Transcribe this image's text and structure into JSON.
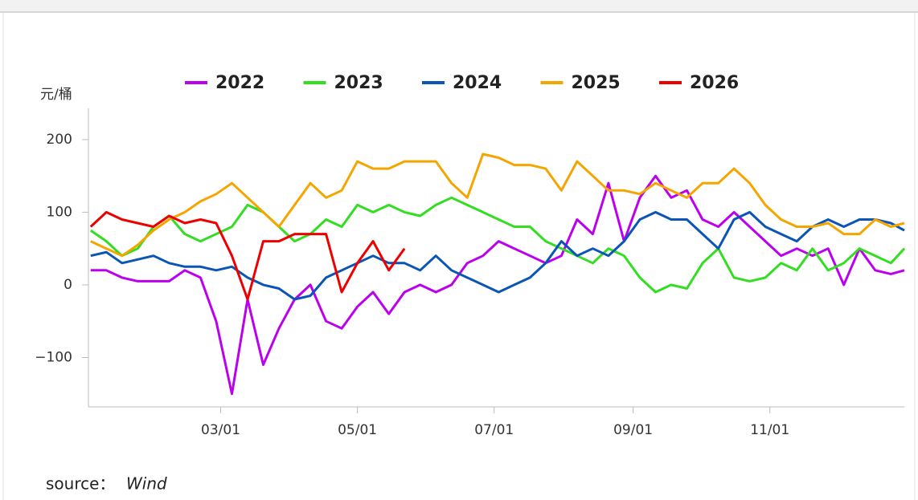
{
  "chart_data": {
    "type": "line",
    "y_unit": "元/桶",
    "source_label": "source：",
    "source": "Wind",
    "x": [
      "01/02",
      "01/09",
      "01/16",
      "01/23",
      "01/30",
      "02/06",
      "02/13",
      "02/20",
      "02/27",
      "03/06",
      "03/13",
      "03/20",
      "03/27",
      "04/03",
      "04/10",
      "04/17",
      "04/24",
      "05/01",
      "05/08",
      "05/15",
      "05/22",
      "05/29",
      "06/05",
      "06/12",
      "06/19",
      "06/26",
      "07/03",
      "07/10",
      "07/17",
      "07/24",
      "07/31",
      "08/07",
      "08/14",
      "08/21",
      "08/28",
      "09/04",
      "09/11",
      "09/18",
      "09/25",
      "10/02",
      "10/09",
      "10/16",
      "10/23",
      "10/30",
      "11/06",
      "11/13",
      "11/20",
      "11/27",
      "12/04",
      "12/11",
      "12/18",
      "12/25",
      "12/31"
    ],
    "series": [
      {
        "name": "2022",
        "color": "#bb00ee",
        "values": [
          20,
          20,
          10,
          5,
          5,
          5,
          20,
          10,
          -50,
          -150,
          -20,
          -110,
          -60,
          -20,
          0,
          -50,
          -60,
          -30,
          -10,
          -40,
          -10,
          0,
          -10,
          0,
          30,
          40,
          60,
          50,
          40,
          30,
          40,
          90,
          70,
          140,
          60,
          120,
          150,
          120,
          130,
          90,
          80,
          100,
          80,
          60,
          40,
          50,
          40,
          50,
          0,
          50,
          20,
          15,
          20
        ]
      },
      {
        "name": "2023",
        "color": "#33dd22",
        "values": [
          75,
          60,
          40,
          50,
          80,
          95,
          70,
          60,
          70,
          80,
          110,
          100,
          80,
          60,
          70,
          90,
          80,
          110,
          100,
          110,
          100,
          95,
          110,
          120,
          110,
          100,
          90,
          80,
          80,
          60,
          50,
          40,
          30,
          50,
          40,
          10,
          -10,
          0,
          -5,
          30,
          50,
          10,
          5,
          10,
          30,
          20,
          50,
          20,
          30,
          50,
          40,
          30,
          50
        ]
      },
      {
        "name": "2024",
        "color": "#0a55b5",
        "values": [
          40,
          45,
          30,
          35,
          40,
          30,
          25,
          25,
          20,
          25,
          10,
          0,
          -5,
          -20,
          -15,
          10,
          20,
          30,
          40,
          30,
          30,
          20,
          40,
          20,
          10,
          0,
          -10,
          0,
          10,
          30,
          60,
          40,
          50,
          40,
          60,
          90,
          100,
          90,
          90,
          70,
          50,
          90,
          100,
          80,
          70,
          60,
          80,
          90,
          80,
          90,
          90,
          85,
          75
        ]
      },
      {
        "name": "2025",
        "color": "#f5a500",
        "values": [
          60,
          50,
          40,
          55,
          75,
          90,
          100,
          115,
          125,
          140,
          120,
          100,
          80,
          110,
          140,
          120,
          130,
          170,
          160,
          160,
          170,
          170,
          170,
          140,
          120,
          180,
          175,
          165,
          165,
          160,
          130,
          170,
          150,
          130,
          130,
          125,
          140,
          130,
          120,
          140,
          140,
          160,
          140,
          110,
          90,
          80,
          80,
          85,
          70,
          70,
          90,
          80,
          85
        ]
      },
      {
        "name": "2026",
        "color": "#ee0000",
        "values": [
          80,
          100,
          90,
          85,
          80,
          95,
          85,
          90,
          85,
          40,
          -20,
          60,
          60,
          70,
          70,
          70,
          -10,
          30,
          60,
          20,
          50,
          null,
          null,
          null,
          null,
          null,
          null,
          null,
          null,
          null,
          null,
          null,
          null,
          null,
          null,
          null,
          null,
          null,
          null,
          null,
          null,
          null,
          null,
          null,
          null,
          null,
          null,
          null,
          null,
          null,
          null,
          null,
          null
        ]
      }
    ],
    "xlim": [
      "01/01",
      "12/31"
    ],
    "xticks": [
      "03/01",
      "05/01",
      "07/01",
      "09/01",
      "11/01"
    ],
    "ylim": [
      -168,
      243
    ],
    "yticks": [
      {
        "value": -100,
        "label": "−100"
      },
      0,
      100,
      200
    ],
    "legend": "top"
  }
}
